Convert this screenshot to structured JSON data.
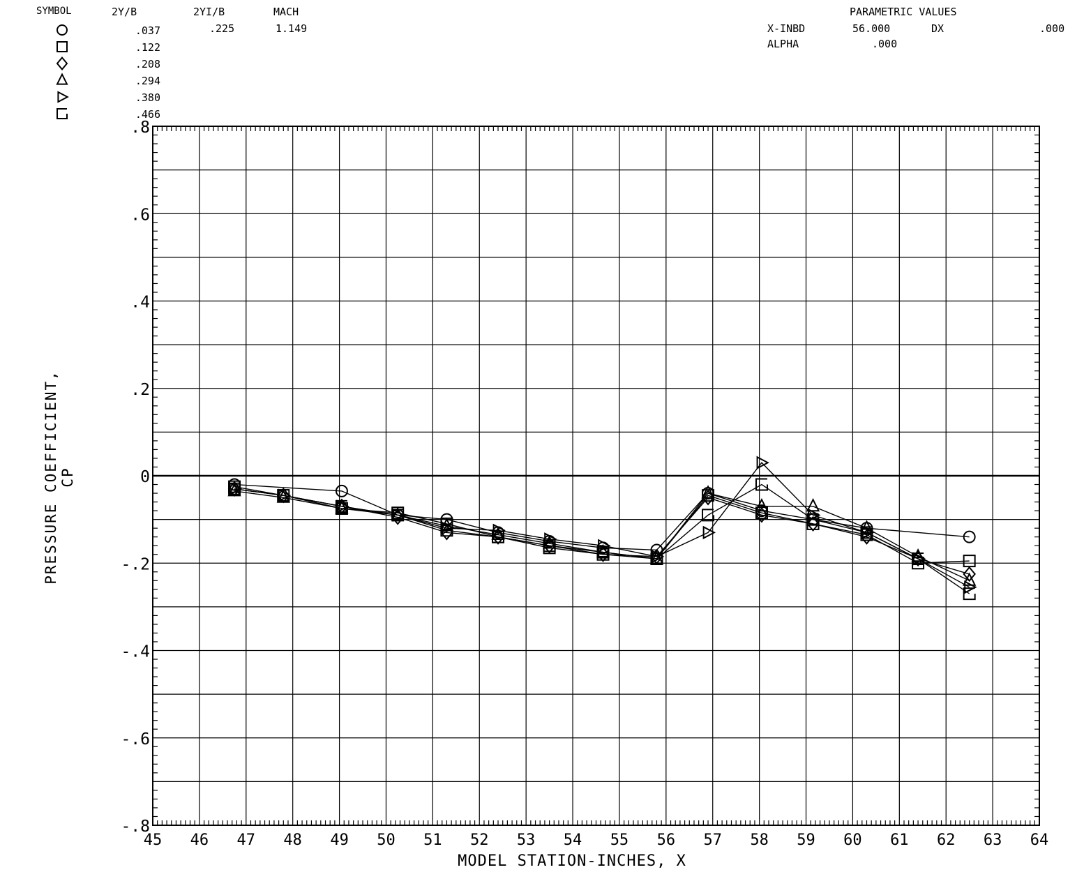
{
  "header": {
    "col_symbol": "SYMBOL",
    "col_2yb": "2Y/B",
    "col_2yib": "2YI/B",
    "col_mach": "MACH",
    "two_yi_b": ".225",
    "mach": "1.149",
    "param_title": "PARAMETRIC VALUES",
    "xinbd_label": "X-INBD",
    "xinbd_value": "56.000",
    "dx_label": "DX",
    "dx_value": ".000",
    "alpha_label": "ALPHA",
    "alpha_value": ".000"
  },
  "chart_data": {
    "type": "line",
    "xlabel": "MODEL STATION-INCHES, X",
    "ylabel": "PRESSURE COEFFICIENT, CP",
    "xlim": [
      45,
      64
    ],
    "ylim": [
      -0.8,
      0.8
    ],
    "x_ticks": [
      "45",
      "46",
      "47",
      "48",
      "49",
      "50",
      "51",
      "52",
      "53",
      "54",
      "55",
      "56",
      "57",
      "58",
      "59",
      "60",
      "61",
      "62",
      "63",
      "64"
    ],
    "y_ticks": [
      ".8",
      ".6",
      ".4",
      ".2",
      "0",
      "-.2",
      "-.4",
      "-.6",
      "-.8"
    ],
    "grid": true,
    "series": [
      {
        "name": ".037",
        "marker": "circle",
        "color": "#000000",
        "x": [
          46.75,
          49.05,
          50.25,
          51.3,
          52.4,
          53.5,
          54.65,
          55.8,
          56.9,
          58.05,
          59.15,
          60.3,
          62.5
        ],
        "y": [
          -0.02,
          -0.035,
          -0.09,
          -0.1,
          -0.13,
          -0.15,
          -0.165,
          -0.17,
          -0.04,
          -0.08,
          -0.1,
          -0.12,
          -0.14
        ]
      },
      {
        "name": ".122",
        "marker": "square",
        "color": "#000000",
        "x": [
          46.75,
          47.8,
          49.05,
          50.25,
          51.3,
          52.4,
          53.5,
          54.65,
          55.8,
          56.9,
          58.05,
          59.15,
          60.3,
          61.4,
          62.5
        ],
        "y": [
          -0.025,
          -0.045,
          -0.075,
          -0.085,
          -0.11,
          -0.14,
          -0.165,
          -0.18,
          -0.19,
          -0.045,
          -0.085,
          -0.11,
          -0.135,
          -0.2,
          -0.195
        ]
      },
      {
        "name": ".208",
        "marker": "diamond",
        "color": "#000000",
        "x": [
          46.75,
          47.8,
          49.05,
          50.25,
          51.3,
          52.4,
          53.5,
          54.65,
          55.8,
          56.9,
          58.05,
          59.15,
          60.3,
          61.4,
          62.5
        ],
        "y": [
          -0.03,
          -0.045,
          -0.07,
          -0.095,
          -0.13,
          -0.14,
          -0.16,
          -0.18,
          -0.185,
          -0.05,
          -0.09,
          -0.11,
          -0.14,
          -0.19,
          -0.225
        ]
      },
      {
        "name": ".294",
        "marker": "triangle-up",
        "color": "#000000",
        "x": [
          46.75,
          47.8,
          49.05,
          50.25,
          51.3,
          52.4,
          53.5,
          54.65,
          55.8,
          56.9,
          58.05,
          59.15,
          60.3,
          61.4,
          62.5
        ],
        "y": [
          -0.035,
          -0.05,
          -0.075,
          -0.09,
          -0.115,
          -0.135,
          -0.155,
          -0.175,
          -0.19,
          -0.04,
          -0.07,
          -0.07,
          -0.12,
          -0.185,
          -0.24
        ]
      },
      {
        "name": ".380",
        "marker": "triangle-right",
        "color": "#000000",
        "x": [
          46.75,
          47.8,
          49.05,
          50.25,
          51.3,
          52.4,
          53.5,
          54.65,
          55.8,
          56.9,
          58.05,
          59.15,
          60.3,
          61.4,
          62.5
        ],
        "y": [
          -0.03,
          -0.045,
          -0.07,
          -0.09,
          -0.12,
          -0.125,
          -0.145,
          -0.16,
          -0.185,
          -0.13,
          0.03,
          -0.09,
          -0.13,
          -0.19,
          -0.255
        ]
      },
      {
        "name": ".466",
        "marker": "open-square",
        "color": "#000000",
        "x": [
          46.75,
          47.8,
          49.05,
          50.25,
          51.3,
          52.4,
          53.5,
          54.65,
          55.8,
          56.9,
          58.05,
          59.15,
          60.3,
          61.4,
          62.5
        ],
        "y": [
          -0.03,
          -0.045,
          -0.07,
          -0.09,
          -0.125,
          -0.14,
          -0.16,
          -0.175,
          -0.19,
          -0.09,
          -0.02,
          -0.1,
          -0.13,
          -0.19,
          -0.27
        ]
      }
    ]
  }
}
